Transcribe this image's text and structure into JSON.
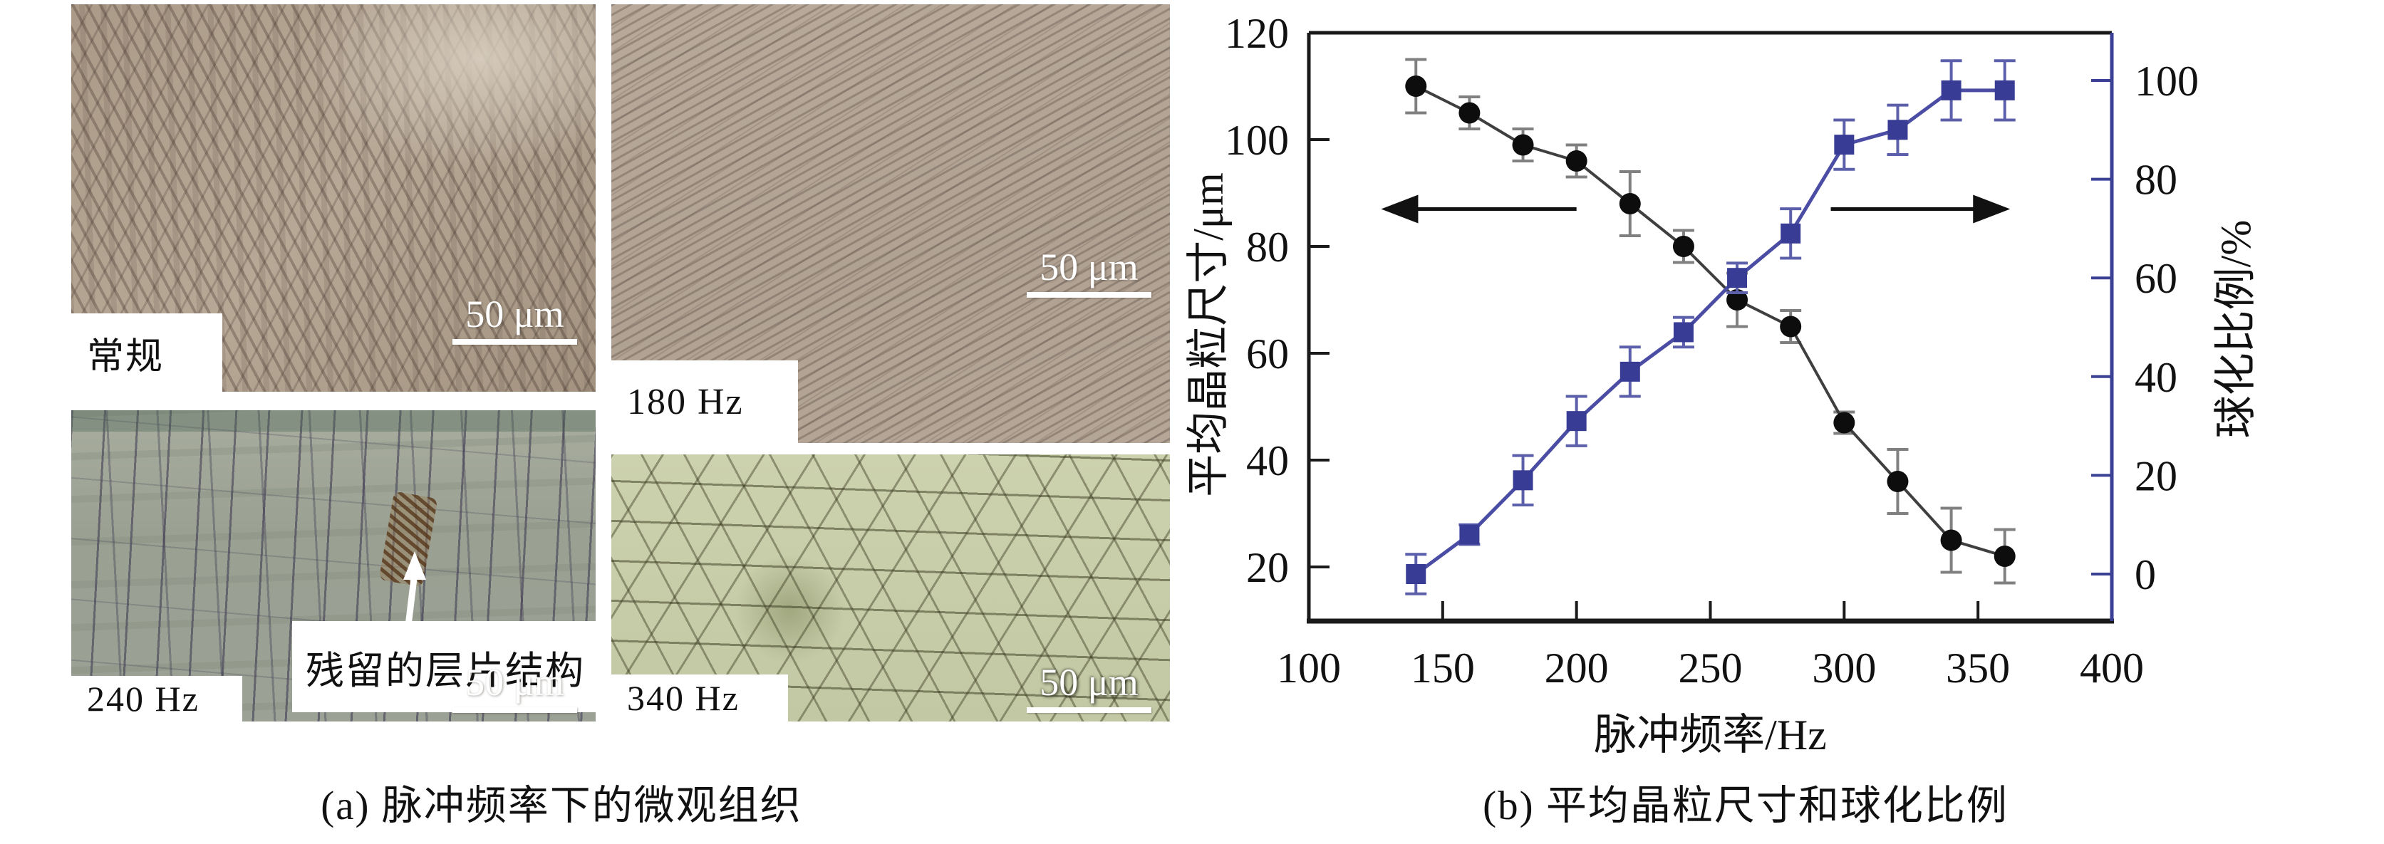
{
  "panel_a": {
    "caption": "(a) 脉冲频率下的微观组织",
    "micrographs": [
      {
        "label": "常规",
        "scale_bar_text": "50 μm"
      },
      {
        "label": "180 Hz",
        "scale_bar_text": "50 μm"
      },
      {
        "label": "240 Hz",
        "scale_bar_text": "50 μm",
        "annotation_text": "残留的层片结构"
      },
      {
        "label": "340 Hz",
        "scale_bar_text": "50 μm"
      }
    ]
  },
  "panel_b": {
    "caption": "(b) 平均晶粒尺寸和球化比例"
  },
  "chart_data": {
    "type": "line",
    "x_label": "脉冲频率/Hz",
    "y_left_label": "平均晶粒尺寸/μm",
    "y_right_label": "球化比例/%",
    "x_ticks": [
      100,
      150,
      200,
      250,
      300,
      350,
      400
    ],
    "y_left_ticks": [
      20,
      40,
      60,
      80,
      100,
      120
    ],
    "y_right_ticks": [
      0,
      20,
      40,
      60,
      80,
      100
    ],
    "xlim": [
      100,
      400
    ],
    "ylim_left": [
      10,
      120
    ],
    "ylim_right": [
      0,
      100
    ],
    "grid": false,
    "x": [
      140,
      160,
      180,
      200,
      220,
      240,
      260,
      280,
      300,
      320,
      340,
      360
    ],
    "series": [
      {
        "name": "平均晶粒尺寸",
        "axis": "left",
        "marker": "circle",
        "line_color": "#3f3f3f",
        "marker_color": "#0d0d0d",
        "error_color": "#808080",
        "values": [
          110,
          105,
          99,
          96,
          88,
          80,
          70,
          65,
          47,
          36,
          25,
          22
        ],
        "errors": [
          5,
          3,
          3,
          3,
          6,
          3,
          5,
          3,
          2,
          6,
          6,
          5
        ]
      },
      {
        "name": "球化比例",
        "axis": "right",
        "marker": "square",
        "line_color": "#4a4da3",
        "marker_color": "#383c94",
        "error_color": "#5c60aa",
        "values": [
          0,
          8,
          19,
          31,
          41,
          49,
          60,
          69,
          87,
          90,
          98,
          98
        ],
        "errors": [
          4,
          2,
          5,
          5,
          5,
          3,
          3,
          5,
          5,
          5,
          6,
          6
        ]
      }
    ],
    "arrows": [
      {
        "direction": "left",
        "from_hz": 200,
        "to_hz": 127,
        "at_left_value": 87
      },
      {
        "direction": "right",
        "from_hz": 295,
        "to_hz": 362,
        "at_left_value": 87
      }
    ],
    "axis_colors": {
      "left": "#1a1a1a",
      "bottom": "#1a1a1a",
      "top": "#1a1a1a",
      "right": "#3a4194"
    }
  }
}
